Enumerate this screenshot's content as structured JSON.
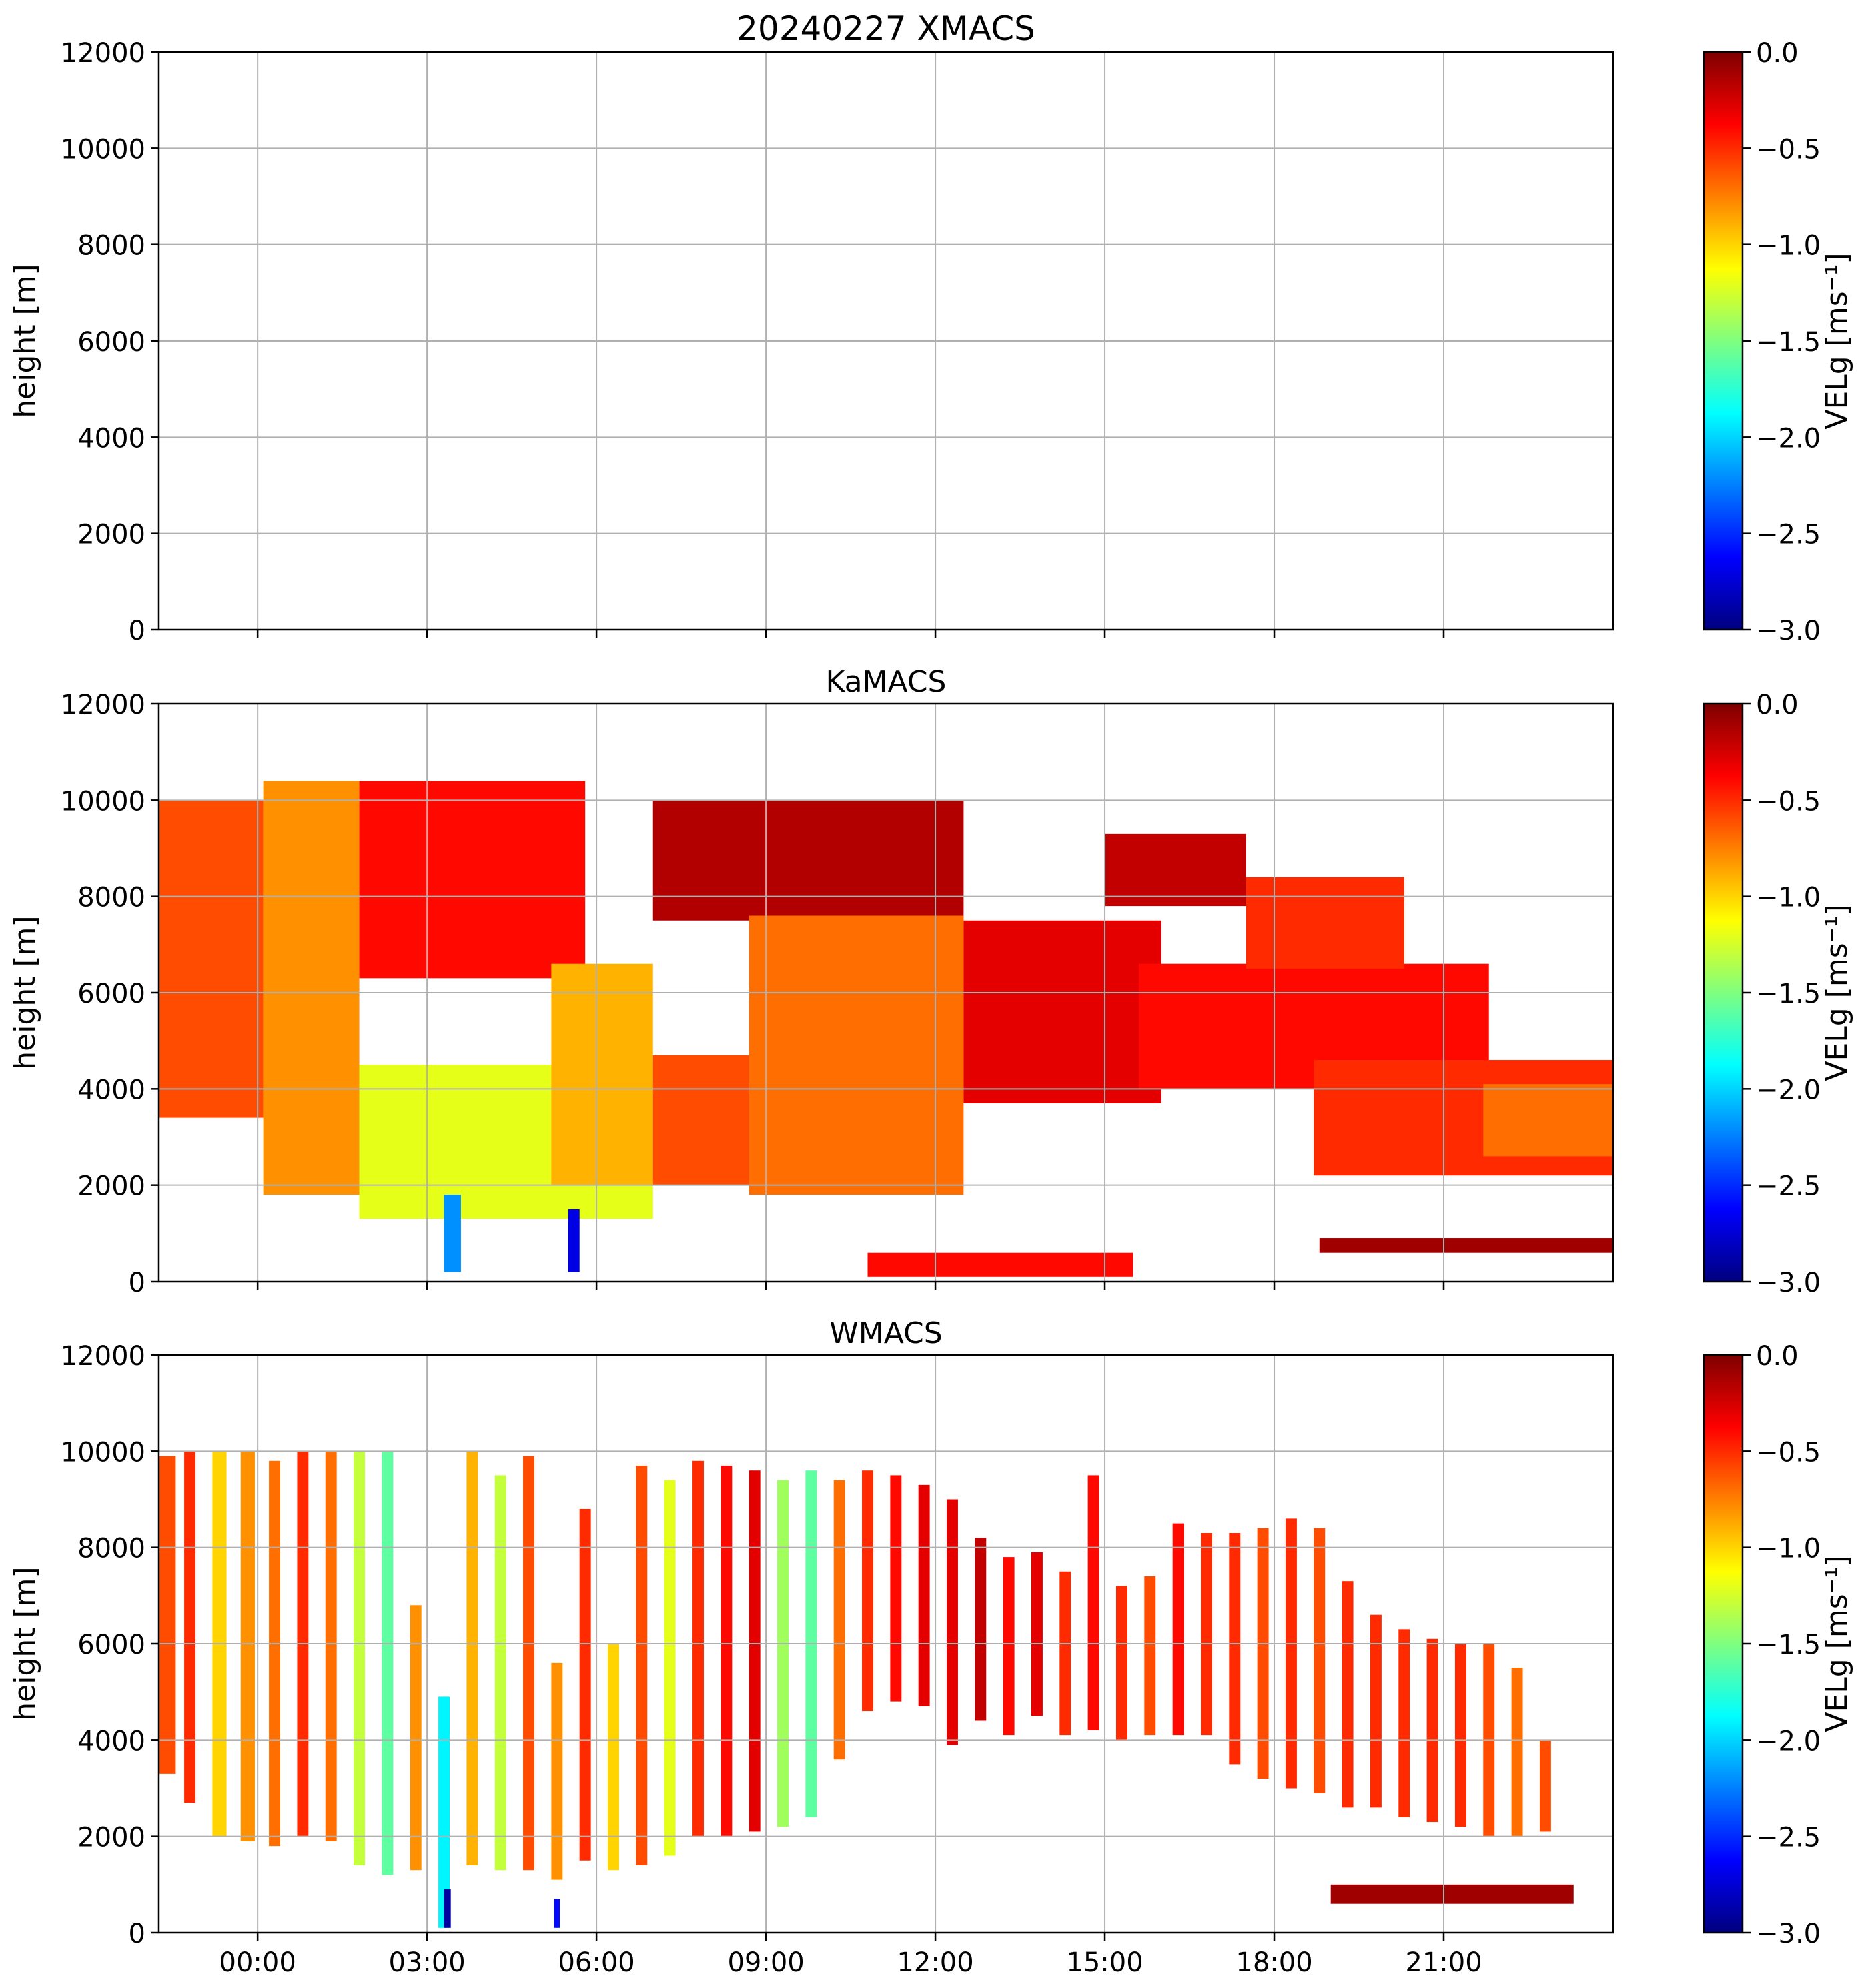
{
  "figure": {
    "colorscale": [
      "#00007f",
      "#0000ff",
      "#007fff",
      "#00ffff",
      "#7fff7f",
      "#ffff00",
      "#ff7f00",
      "#ff0000",
      "#7f0000"
    ]
  },
  "chart_data": [
    {
      "type": "heatmap",
      "title": "20240227 XMACS",
      "xlabel": "",
      "ylabel": "height [m]",
      "ylim": [
        0,
        12000
      ],
      "xlim_hours": [
        -1.75,
        24.0
      ],
      "yticks": [
        "0",
        "2000",
        "4000",
        "6000",
        "8000",
        "10000",
        "12000"
      ],
      "xtick_hours": [
        0,
        3,
        6,
        9,
        12,
        15,
        18,
        21
      ],
      "xticks": [
        "00:00",
        "03:00",
        "06:00",
        "09:00",
        "12:00",
        "15:00",
        "18:00",
        "21:00"
      ],
      "show_xticklabels": false,
      "colorbar": {
        "label": "VELg [ms⁻¹]",
        "range": [
          -3.0,
          0.0
        ],
        "ticks": [
          "0.0",
          "−0.5",
          "−1.0",
          "−1.5",
          "−2.0",
          "−2.5",
          "−3.0"
        ]
      },
      "regions": []
    },
    {
      "type": "heatmap",
      "title": "KaMACS",
      "xlabel": "",
      "ylabel": "height [m]",
      "ylim": [
        0,
        12000
      ],
      "xlim_hours": [
        -1.75,
        24.0
      ],
      "yticks": [
        "0",
        "2000",
        "4000",
        "6000",
        "8000",
        "10000",
        "12000"
      ],
      "xtick_hours": [
        0,
        3,
        6,
        9,
        12,
        15,
        18,
        21
      ],
      "xticks": [
        "00:00",
        "03:00",
        "06:00",
        "09:00",
        "12:00",
        "15:00",
        "18:00",
        "21:00"
      ],
      "show_xticklabels": false,
      "colorbar": {
        "label": "VELg [ms⁻¹]",
        "range": [
          -3.0,
          0.0
        ],
        "ticks": [
          "0.0",
          "−0.5",
          "−1.0",
          "−1.5",
          "−2.0",
          "−2.5",
          "−3.0"
        ]
      },
      "regions": [
        {
          "t0": -1.75,
          "t1": 0.1,
          "h0": 3400,
          "h1": 10000,
          "vel": -0.6
        },
        {
          "t0": 0.1,
          "t1": 1.8,
          "h0": 1800,
          "h1": 10400,
          "vel": -0.8
        },
        {
          "t0": 1.8,
          "t1": 5.8,
          "h0": 6300,
          "h1": 10400,
          "vel": -0.4
        },
        {
          "t0": 1.8,
          "t1": 7.0,
          "h0": 1300,
          "h1": 4500,
          "vel": -1.2
        },
        {
          "t0": 5.2,
          "t1": 7.0,
          "h0": 2000,
          "h1": 6600,
          "vel": -0.9
        },
        {
          "t0": 7.0,
          "t1": 8.7,
          "h0": 2000,
          "h1": 4700,
          "vel": -0.6
        },
        {
          "t0": 7.0,
          "t1": 12.5,
          "h0": 7500,
          "h1": 10000,
          "vel": -0.15
        },
        {
          "t0": 8.7,
          "t1": 12.5,
          "h0": 1800,
          "h1": 7600,
          "vel": -0.7
        },
        {
          "t0": 12.5,
          "t1": 16.0,
          "h0": 3700,
          "h1": 7500,
          "vel": -0.3
        },
        {
          "t0": 15.0,
          "t1": 17.5,
          "h0": 7800,
          "h1": 9300,
          "vel": -0.2
        },
        {
          "t0": 15.6,
          "t1": 21.8,
          "h0": 4000,
          "h1": 6600,
          "vel": -0.4
        },
        {
          "t0": 17.5,
          "t1": 20.3,
          "h0": 6500,
          "h1": 8400,
          "vel": -0.5
        },
        {
          "t0": 18.7,
          "t1": 24.0,
          "h0": 2200,
          "h1": 4600,
          "vel": -0.5
        },
        {
          "t0": 21.7,
          "t1": 24.0,
          "h0": 2600,
          "h1": 4100,
          "vel": -0.7
        },
        {
          "t0": 3.3,
          "t1": 3.6,
          "h0": 200,
          "h1": 1800,
          "vel": -2.2
        },
        {
          "t0": 5.5,
          "t1": 5.7,
          "h0": 200,
          "h1": 1500,
          "vel": -2.7
        },
        {
          "t0": 10.8,
          "t1": 15.5,
          "h0": 100,
          "h1": 600,
          "vel": -0.4
        },
        {
          "t0": 18.8,
          "t1": 24.0,
          "h0": 600,
          "h1": 900,
          "vel": -0.1
        }
      ]
    },
    {
      "type": "heatmap",
      "title": "WMACS",
      "xlabel": "",
      "ylabel": "height [m]",
      "ylim": [
        0,
        12000
      ],
      "xlim_hours": [
        -1.75,
        24.0
      ],
      "yticks": [
        "0",
        "2000",
        "4000",
        "6000",
        "8000",
        "10000",
        "12000"
      ],
      "xtick_hours": [
        0,
        3,
        6,
        9,
        12,
        15,
        18,
        21
      ],
      "xticks": [
        "00:00",
        "03:00",
        "06:00",
        "09:00",
        "12:00",
        "15:00",
        "18:00",
        "21:00"
      ],
      "show_xticklabels": true,
      "colorbar": {
        "label": "VELg [ms⁻¹]",
        "range": [
          -3.0,
          0.0
        ],
        "ticks": [
          "0.0",
          "−0.5",
          "−1.0",
          "−1.5",
          "−2.0",
          "−2.5",
          "−3.0"
        ]
      },
      "regions": [
        {
          "t0": -1.75,
          "t1": -1.45,
          "h0": 3300,
          "h1": 9900,
          "vel": -0.6
        },
        {
          "t0": -1.3,
          "t1": -1.1,
          "h0": 2700,
          "h1": 10000,
          "vel": -0.5
        },
        {
          "t0": -0.8,
          "t1": -0.55,
          "h0": 2000,
          "h1": 10000,
          "vel": -1.0
        },
        {
          "t0": -0.3,
          "t1": -0.05,
          "h0": 1900,
          "h1": 10000,
          "vel": -0.8
        },
        {
          "t0": 0.2,
          "t1": 0.4,
          "h0": 1800,
          "h1": 9800,
          "vel": -0.7
        },
        {
          "t0": 0.7,
          "t1": 0.9,
          "h0": 2000,
          "h1": 10000,
          "vel": -0.5
        },
        {
          "t0": 1.2,
          "t1": 1.4,
          "h0": 1900,
          "h1": 10000,
          "vel": -0.7
        },
        {
          "t0": 1.7,
          "t1": 1.9,
          "h0": 1400,
          "h1": 10000,
          "vel": -1.3
        },
        {
          "t0": 2.2,
          "t1": 2.4,
          "h0": 1200,
          "h1": 10000,
          "vel": -1.6
        },
        {
          "t0": 2.7,
          "t1": 2.9,
          "h0": 1300,
          "h1": 6800,
          "vel": -0.8
        },
        {
          "t0": 3.2,
          "t1": 3.4,
          "h0": 100,
          "h1": 4900,
          "vel": -1.9
        },
        {
          "t0": 3.7,
          "t1": 3.9,
          "h0": 1400,
          "h1": 10000,
          "vel": -0.9
        },
        {
          "t0": 4.2,
          "t1": 4.4,
          "h0": 1300,
          "h1": 9500,
          "vel": -1.3
        },
        {
          "t0": 4.7,
          "t1": 4.9,
          "h0": 1300,
          "h1": 9900,
          "vel": -0.6
        },
        {
          "t0": 5.2,
          "t1": 5.4,
          "h0": 1100,
          "h1": 5600,
          "vel": -0.8
        },
        {
          "t0": 5.7,
          "t1": 5.9,
          "h0": 1500,
          "h1": 8800,
          "vel": -0.5
        },
        {
          "t0": 6.2,
          "t1": 6.4,
          "h0": 1300,
          "h1": 6000,
          "vel": -1.0
        },
        {
          "t0": 6.7,
          "t1": 6.9,
          "h0": 1400,
          "h1": 9700,
          "vel": -0.6
        },
        {
          "t0": 7.2,
          "t1": 7.4,
          "h0": 1600,
          "h1": 9400,
          "vel": -1.2
        },
        {
          "t0": 7.7,
          "t1": 7.9,
          "h0": 2000,
          "h1": 9800,
          "vel": -0.5
        },
        {
          "t0": 8.2,
          "t1": 8.4,
          "h0": 2000,
          "h1": 9700,
          "vel": -0.4
        },
        {
          "t0": 8.7,
          "t1": 8.9,
          "h0": 2100,
          "h1": 9600,
          "vel": -0.3
        },
        {
          "t0": 9.2,
          "t1": 9.4,
          "h0": 2200,
          "h1": 9400,
          "vel": -1.4
        },
        {
          "t0": 9.7,
          "t1": 9.9,
          "h0": 2400,
          "h1": 9600,
          "vel": -1.6
        },
        {
          "t0": 10.2,
          "t1": 10.4,
          "h0": 3600,
          "h1": 9400,
          "vel": -0.7
        },
        {
          "t0": 10.7,
          "t1": 10.9,
          "h0": 4600,
          "h1": 9600,
          "vel": -0.5
        },
        {
          "t0": 11.2,
          "t1": 11.4,
          "h0": 4800,
          "h1": 9500,
          "vel": -0.4
        },
        {
          "t0": 11.7,
          "t1": 11.9,
          "h0": 4700,
          "h1": 9300,
          "vel": -0.3
        },
        {
          "t0": 12.2,
          "t1": 12.4,
          "h0": 3900,
          "h1": 9000,
          "vel": -0.3
        },
        {
          "t0": 12.7,
          "t1": 12.9,
          "h0": 4400,
          "h1": 8200,
          "vel": -0.2
        },
        {
          "t0": 13.2,
          "t1": 13.4,
          "h0": 4100,
          "h1": 7800,
          "vel": -0.4
        },
        {
          "t0": 13.7,
          "t1": 13.9,
          "h0": 4500,
          "h1": 7900,
          "vel": -0.3
        },
        {
          "t0": 14.2,
          "t1": 14.4,
          "h0": 4100,
          "h1": 7500,
          "vel": -0.5
        },
        {
          "t0": 14.7,
          "t1": 14.9,
          "h0": 4200,
          "h1": 9500,
          "vel": -0.4
        },
        {
          "t0": 15.2,
          "t1": 15.4,
          "h0": 4000,
          "h1": 7200,
          "vel": -0.5
        },
        {
          "t0": 15.7,
          "t1": 15.9,
          "h0": 4100,
          "h1": 7400,
          "vel": -0.6
        },
        {
          "t0": 16.2,
          "t1": 16.4,
          "h0": 4100,
          "h1": 8500,
          "vel": -0.4
        },
        {
          "t0": 16.7,
          "t1": 16.9,
          "h0": 4100,
          "h1": 8300,
          "vel": -0.5
        },
        {
          "t0": 17.2,
          "t1": 17.4,
          "h0": 3500,
          "h1": 8300,
          "vel": -0.5
        },
        {
          "t0": 17.7,
          "t1": 17.9,
          "h0": 3200,
          "h1": 8400,
          "vel": -0.6
        },
        {
          "t0": 18.2,
          "t1": 18.4,
          "h0": 3000,
          "h1": 8600,
          "vel": -0.5
        },
        {
          "t0": 18.7,
          "t1": 18.9,
          "h0": 2900,
          "h1": 8400,
          "vel": -0.6
        },
        {
          "t0": 19.2,
          "t1": 19.4,
          "h0": 2600,
          "h1": 7300,
          "vel": -0.5
        },
        {
          "t0": 19.7,
          "t1": 19.9,
          "h0": 2600,
          "h1": 6600,
          "vel": -0.5
        },
        {
          "t0": 20.2,
          "t1": 20.4,
          "h0": 2400,
          "h1": 6300,
          "vel": -0.5
        },
        {
          "t0": 20.7,
          "t1": 20.9,
          "h0": 2300,
          "h1": 6100,
          "vel": -0.5
        },
        {
          "t0": 21.2,
          "t1": 21.4,
          "h0": 2200,
          "h1": 6000,
          "vel": -0.5
        },
        {
          "t0": 21.7,
          "t1": 21.9,
          "h0": 2000,
          "h1": 6000,
          "vel": -0.6
        },
        {
          "t0": 22.2,
          "t1": 22.4,
          "h0": 2000,
          "h1": 5500,
          "vel": -0.7
        },
        {
          "t0": 22.7,
          "t1": 22.9,
          "h0": 2100,
          "h1": 4000,
          "vel": -0.6
        },
        {
          "t0": 3.3,
          "t1": 3.42,
          "h0": 100,
          "h1": 900,
          "vel": -2.9
        },
        {
          "t0": 5.25,
          "t1": 5.35,
          "h0": 100,
          "h1": 700,
          "vel": -2.6
        },
        {
          "t0": 19.0,
          "t1": 23.3,
          "h0": 600,
          "h1": 1000,
          "vel": -0.1
        }
      ]
    }
  ]
}
